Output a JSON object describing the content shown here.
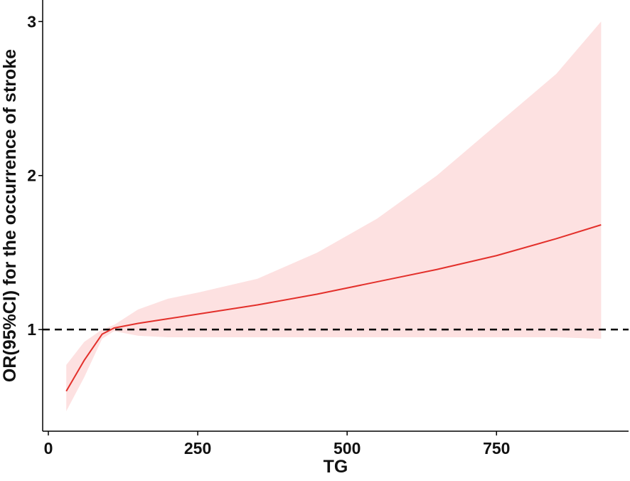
{
  "chart_data": {
    "type": "line",
    "xlabel": "TG",
    "ylabel": "OR(95%CI) for the occurrence of stroke",
    "x": [
      30,
      60,
      90,
      110,
      150,
      200,
      250,
      350,
      450,
      550,
      650,
      750,
      850,
      925
    ],
    "values": [
      0.6,
      0.8,
      0.97,
      1.01,
      1.04,
      1.07,
      1.1,
      1.16,
      1.23,
      1.31,
      1.39,
      1.48,
      1.59,
      1.68
    ],
    "lower": [
      0.47,
      0.69,
      0.94,
      0.99,
      0.96,
      0.95,
      0.95,
      0.95,
      0.95,
      0.95,
      0.95,
      0.95,
      0.95,
      0.94
    ],
    "upper": [
      0.77,
      0.92,
      1.0,
      1.03,
      1.13,
      1.2,
      1.24,
      1.33,
      1.5,
      1.72,
      2.0,
      2.33,
      2.66,
      3.0
    ],
    "color": "#e3302b",
    "band_color": "#fde1e1",
    "reference_line": 1,
    "xlim": [
      -9.5,
      971
    ],
    "ylim": [
      0.34,
      3.14
    ],
    "xticks": [
      0,
      250,
      500,
      750
    ],
    "yticks": [
      1,
      2,
      3
    ]
  }
}
